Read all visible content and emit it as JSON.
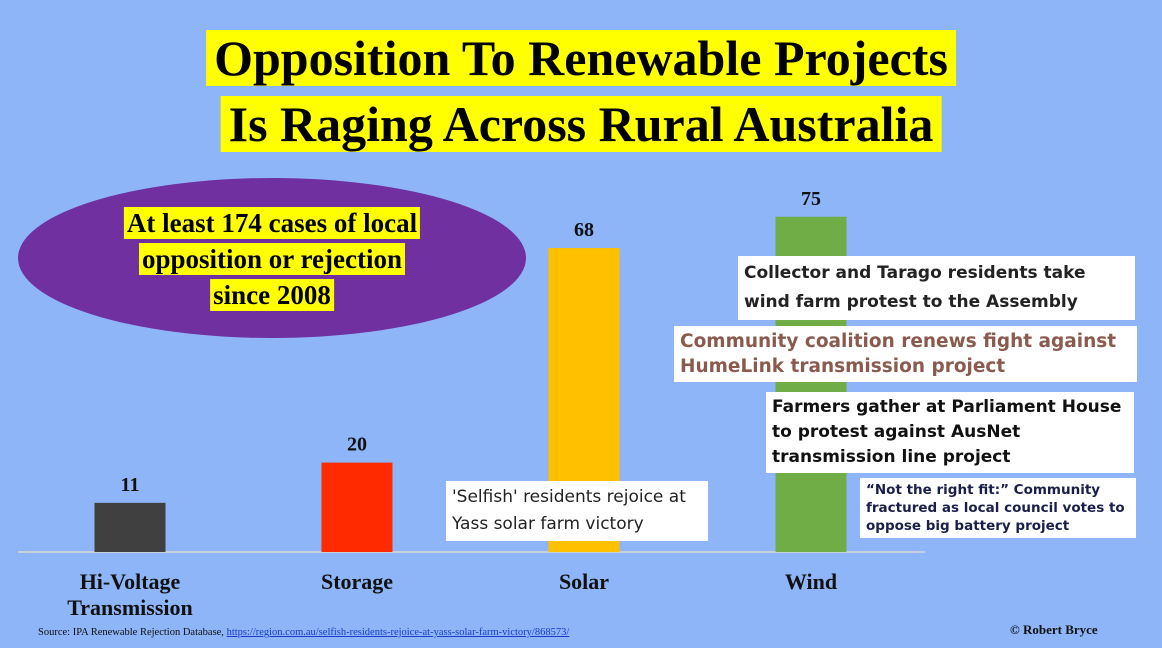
{
  "title": {
    "line1": "Opposition To Renewable Projects",
    "line2": "Is Raging Across Rural Australia",
    "highlight_color": "#ffff00"
  },
  "callout": {
    "lines": [
      "At least 174 cases of local",
      "opposition or rejection",
      "since 2008"
    ],
    "ellipse_color": "#7030a0"
  },
  "chart_data": {
    "type": "bar",
    "categories": [
      "Hi-Voltage Transmission",
      "Storage",
      "Solar",
      "Wind"
    ],
    "category_label_lines": [
      [
        "Hi-Voltage",
        "Transmission"
      ],
      [
        "Storage"
      ],
      [
        "Solar"
      ],
      [
        "Wind"
      ]
    ],
    "values": [
      11,
      20,
      68,
      75
    ],
    "data_labels": [
      "11",
      "20",
      "68",
      "75"
    ],
    "colors": [
      "#404040",
      "#ff2a00",
      "#ffc000",
      "#70ad47"
    ],
    "ylim": [
      0,
      80
    ],
    "grid": false,
    "title": "",
    "xlabel": "",
    "ylabel": ""
  },
  "headlines": {
    "collector": "Collector and Tarago residents take wind farm protest to the Assembly",
    "community": "Community coalition renews fight against HumeLink transmission project",
    "farmers": "Farmers gather at Parliament House to protest against AusNet transmission line project",
    "notright": "“Not the right fit:” Community fractured as local council votes to oppose big battery project",
    "selfish": "'Selfish' residents rejoice at Yass solar farm victory"
  },
  "source": {
    "prefix": "Source: IPA Renewable Rejection Database, ",
    "url": "https://region.com.au/selfish-residents-rejoice-at-yass-solar-farm-victory/868573/"
  },
  "credit": "© Robert Bryce"
}
